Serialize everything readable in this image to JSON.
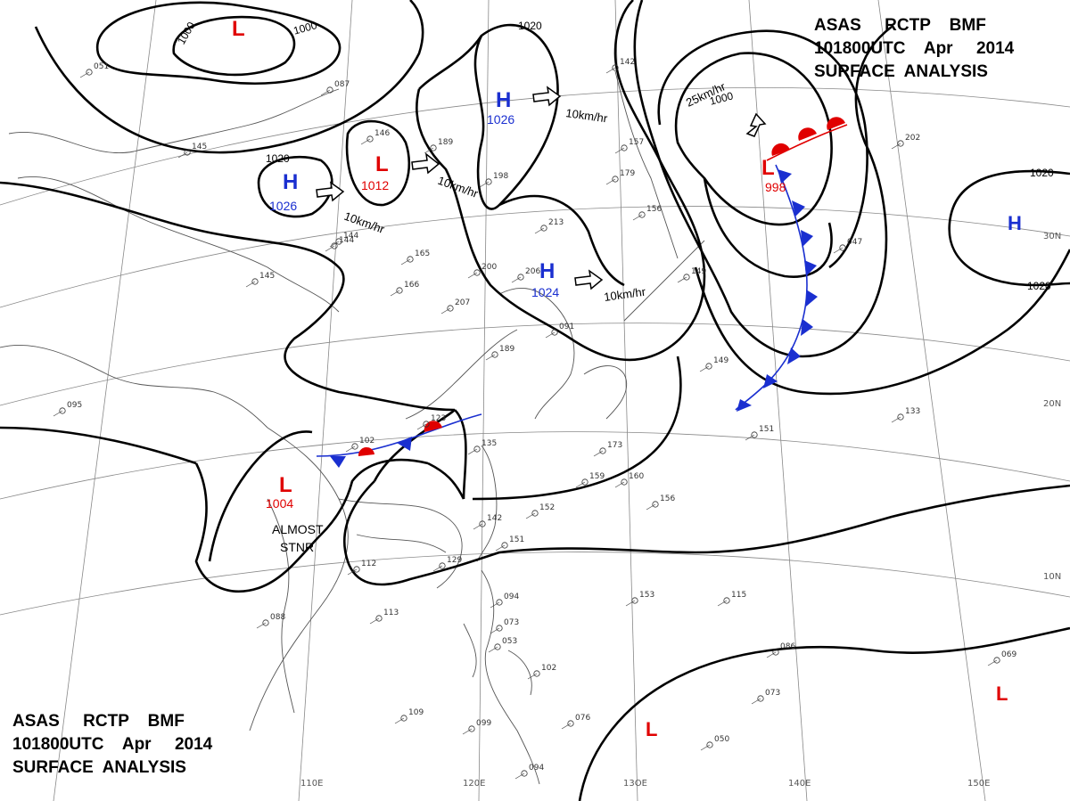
{
  "title": {
    "line1": "ASAS     RCTP    BMF",
    "line2": "101800UTC    Apr     2014",
    "line3": "SURFACE  ANALYSIS"
  },
  "longitude_labels": [
    "110E",
    "120E",
    "13OE",
    "140E",
    "150E"
  ],
  "latitude_labels": [
    "30N",
    "20N",
    "10N"
  ],
  "pressure_systems": [
    {
      "type": "L",
      "value": ""
    },
    {
      "type": "H",
      "value": "1026"
    },
    {
      "type": "H",
      "value": "1026"
    },
    {
      "type": "L",
      "value": "1012"
    },
    {
      "type": "H",
      "value": "1024"
    },
    {
      "type": "L",
      "value": "998"
    },
    {
      "type": "H",
      "value": ""
    },
    {
      "type": "L",
      "value": "1004"
    },
    {
      "type": "L",
      "value": ""
    },
    {
      "type": "L",
      "value": ""
    }
  ],
  "isobar_labels": [
    "1000",
    "1000",
    "1020",
    "1020",
    "1000",
    "1020",
    "1020"
  ],
  "motion_labels": [
    "10km/hr",
    "10km/hr",
    "10km/hr",
    "10km/hr",
    "25km/hr"
  ],
  "annotations": {
    "almost": "ALMOST",
    "stnr": "STNR"
  },
  "colors": {
    "high": "#1a2fd0",
    "low": "#e00000",
    "warm_front": "#e00000",
    "cold_front": "#1a2fd0"
  },
  "station_plots": [
    "051",
    "087",
    "145",
    "144",
    "165",
    "166",
    "189",
    "198",
    "213",
    "200",
    "206",
    "207",
    "146",
    "142",
    "157",
    "179",
    "156",
    "149",
    "145",
    "144",
    "095",
    "123",
    "102",
    "135",
    "173",
    "159",
    "160",
    "156",
    "152",
    "142",
    "151",
    "129",
    "112",
    "113",
    "088",
    "094",
    "073",
    "053",
    "102",
    "099",
    "109",
    "076",
    "094",
    "153",
    "115",
    "086",
    "073",
    "050",
    "069",
    "151",
    "133",
    "202",
    "047",
    "091",
    "189",
    "149"
  ]
}
